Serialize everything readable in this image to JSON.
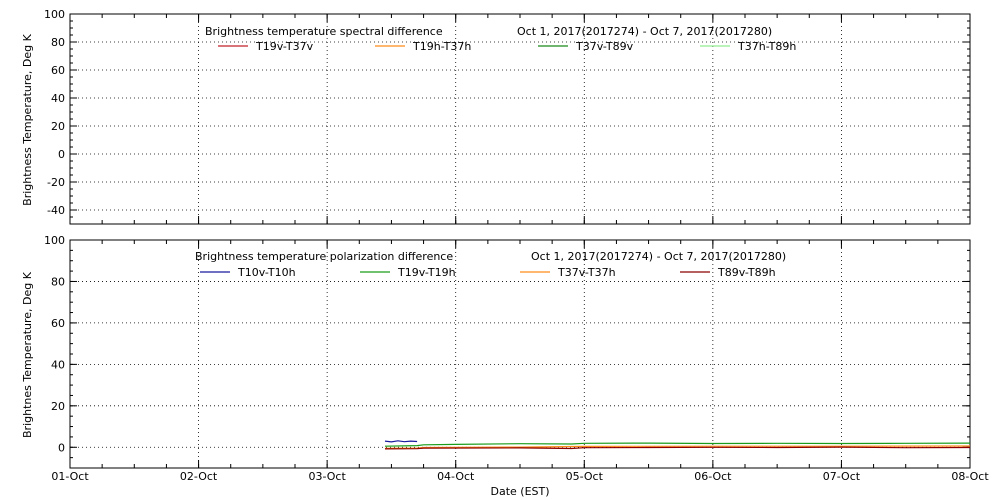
{
  "chart_data": [
    {
      "type": "line",
      "title": "Brightness temperature spectral difference",
      "date_range": "Oct  1, 2017(2017274) - Oct  7, 2017(2017280)",
      "xlabel": "",
      "ylabel": "Brightness Temperature, Deg K",
      "ylim": [
        -50,
        100
      ],
      "yticks": [
        -40,
        -20,
        0,
        20,
        40,
        60,
        80,
        100
      ],
      "xlim": [
        0,
        7
      ],
      "xgrid": [
        1,
        2,
        3,
        4,
        5,
        6
      ],
      "xticklabels": [],
      "grid": true,
      "legend_position": "top",
      "series": [
        {
          "name": "T19v-T37v",
          "color": "#c0202a",
          "x": [],
          "y": []
        },
        {
          "name": "T19h-T37h",
          "color": "#ff8c1a",
          "x": [],
          "y": []
        },
        {
          "name": "T37v-T89v",
          "color": "#1a8a1a",
          "x": [],
          "y": []
        },
        {
          "name": "T37h-T89h",
          "color": "#90ee90",
          "x": [],
          "y": []
        }
      ]
    },
    {
      "type": "line",
      "title": "Brightness temperature polarization difference",
      "date_range": "Oct  1, 2017(2017274) - Oct  7, 2017(2017280)",
      "xlabel": "Date (EST)",
      "ylabel": "Brightnes Temperature, Deg K",
      "ylim": [
        -10,
        100
      ],
      "yticks": [
        0,
        20,
        40,
        60,
        80,
        100
      ],
      "xlim": [
        0,
        7
      ],
      "xgrid": [
        1,
        2,
        3,
        4,
        5,
        6
      ],
      "xticklabels": [
        "01-Oct",
        "02-Oct",
        "03-Oct",
        "04-Oct",
        "05-Oct",
        "06-Oct",
        "07-Oct",
        "08-Oct"
      ],
      "grid": true,
      "legend_position": "top",
      "series": [
        {
          "name": "T10v-T10h",
          "color": "#1a1a9c",
          "x": [
            2.45,
            2.5,
            2.55,
            2.6,
            2.65,
            2.7
          ],
          "y": [
            3.0,
            2.6,
            3.1,
            2.7,
            3.0,
            2.8
          ]
        },
        {
          "name": "T19v-T19h",
          "color": "#1a9c1a",
          "x": [
            2.45,
            2.7,
            2.75,
            3.0,
            3.5,
            3.9,
            4.0,
            4.5,
            5.0,
            5.5,
            6.0,
            6.5,
            7.0
          ],
          "y": [
            0.5,
            0.8,
            1.2,
            1.4,
            1.7,
            1.6,
            1.9,
            2.0,
            1.8,
            1.9,
            1.8,
            1.9,
            2.0
          ]
        },
        {
          "name": "T37v-T37h",
          "color": "#ff8c1a",
          "x": [
            2.45,
            2.7,
            2.75,
            3.5,
            4.0,
            5.0,
            6.0,
            7.0
          ],
          "y": [
            -0.5,
            -0.4,
            -0.1,
            0.1,
            0.4,
            0.5,
            0.5,
            0.6
          ]
        },
        {
          "name": "T89v-T89h",
          "color": "#8b0000",
          "x": [
            2.45,
            2.7,
            2.75,
            3.5,
            3.9,
            4.0,
            4.5,
            5.0,
            5.5,
            6.0,
            6.5,
            7.0
          ],
          "y": [
            -0.8,
            -0.7,
            -0.4,
            -0.3,
            -0.6,
            -0.2,
            -0.1,
            0.0,
            -0.1,
            0.1,
            -0.2,
            -0.1
          ]
        }
      ]
    }
  ]
}
